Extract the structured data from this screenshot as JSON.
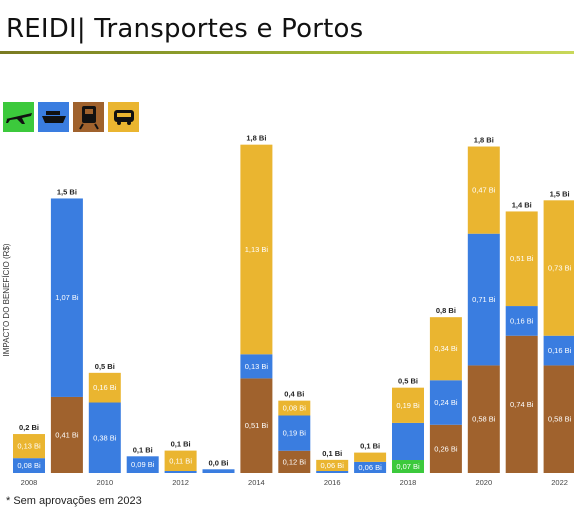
{
  "page": {
    "title": "REIDI| Transportes e Portos",
    "footnote": "* Sem aprovações em 2023"
  },
  "legend": [
    {
      "icon": "airplane-icon",
      "color": "#3cc93c"
    },
    {
      "icon": "ship-icon",
      "color": "#3a7de0"
    },
    {
      "icon": "train-icon",
      "color": "#a0622d"
    },
    {
      "icon": "bus-icon",
      "color": "#eab530"
    }
  ],
  "chart_data": {
    "type": "bar",
    "stacked": true,
    "ylabel": "IMPACTO DO BENEFÍCIO (R$)",
    "x_tick_labels": [
      "2008",
      "",
      "2010",
      "",
      "2012",
      "",
      "2014",
      "",
      "2016",
      "",
      "2018",
      "",
      "2020",
      "",
      "2022"
    ],
    "totals": [
      "0,2 Bi",
      "1,5 Bi",
      "0,5 Bi",
      "0,1 Bi",
      "0,1 Bi",
      "0,0 Bi",
      "1,8 Bi",
      "0,4 Bi",
      "0,1 Bi",
      "0,1 Bi",
      "0,5 Bi",
      "0,8 Bi",
      "1,8 Bi",
      "1,4 Bi",
      "1,5 Bi"
    ],
    "series": [
      {
        "color": "#3cc93c",
        "values": [
          0,
          0,
          0,
          0,
          0,
          0,
          0,
          0,
          0,
          0,
          0.07,
          0,
          0,
          0,
          0
        ],
        "labels": [
          "",
          "",
          "",
          "",
          "",
          "",
          "",
          "",
          "",
          "",
          "0,07 Bi",
          "",
          "",
          "",
          ""
        ]
      },
      {
        "color": "#a0622d",
        "values": [
          0,
          0.41,
          0,
          0,
          0,
          0,
          0.51,
          0.12,
          0,
          0,
          0,
          0.26,
          0.58,
          0.74,
          0.58
        ],
        "labels": [
          "",
          "0,41 Bi",
          "",
          "",
          "",
          "",
          "0,51 Bi",
          "0,12 Bi",
          "",
          "",
          "",
          "0,26 Bi",
          "0,58 Bi",
          "0,74 Bi",
          "0,58 Bi"
        ]
      },
      {
        "color": "#3a7de0",
        "values": [
          0.08,
          1.07,
          0.38,
          0.09,
          0.01,
          0.02,
          0.13,
          0.19,
          0.01,
          0.06,
          0.2,
          0.24,
          0.71,
          0.16,
          0.16
        ],
        "labels": [
          "0,08 Bi",
          "1,07 Bi",
          "0,38 Bi",
          "0,09 Bi",
          "",
          "",
          "0,13 Bi",
          "0,19 Bi",
          "",
          "0,06 Bi",
          "",
          "0,24 Bi",
          "0,71 Bi",
          "0,16 Bi",
          "0,16 Bi"
        ]
      },
      {
        "color": "#eab530",
        "values": [
          0.13,
          0,
          0.16,
          0,
          0.11,
          0,
          1.13,
          0.08,
          0.06,
          0.05,
          0.19,
          0.34,
          0.47,
          0.51,
          0.73
        ],
        "labels": [
          "0,13 Bi",
          "",
          "0,16 Bi",
          "",
          "0,11 Bi",
          "",
          "1,13 Bi",
          "0,08 Bi",
          "0,06 Bi",
          "",
          "0,19 Bi",
          "0,34 Bi",
          "0,47 Bi",
          "0,51 Bi",
          "0,73 Bi"
        ]
      }
    ]
  }
}
